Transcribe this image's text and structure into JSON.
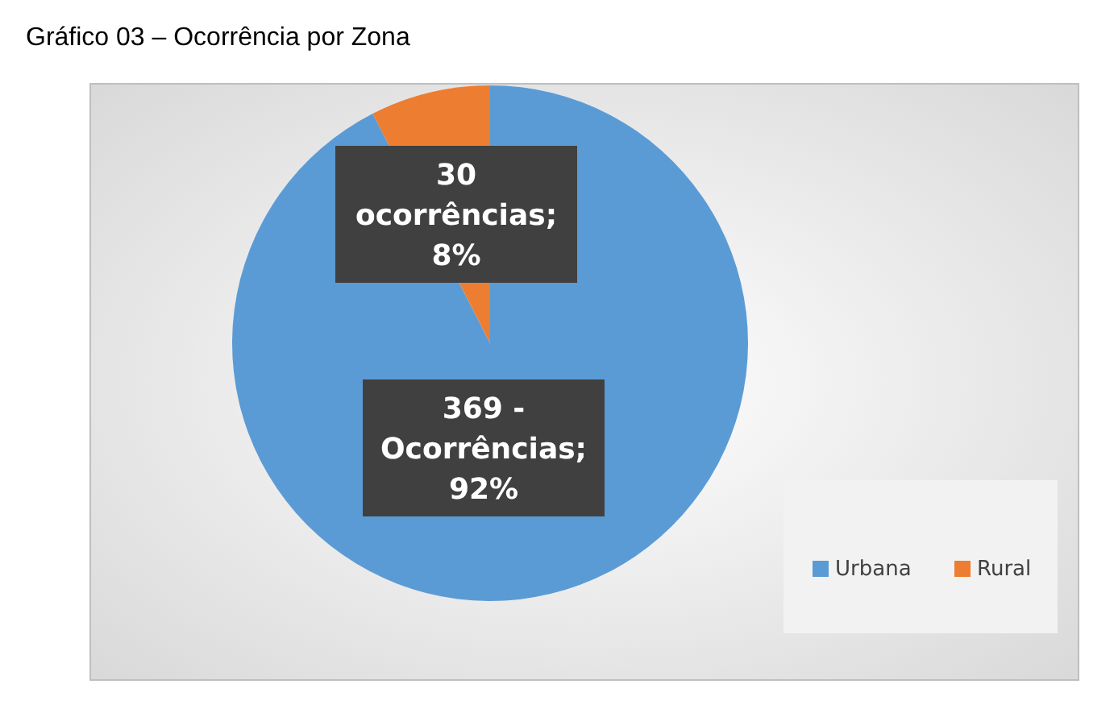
{
  "chart_data": {
    "type": "pie",
    "title": "Gráfico 03 – Ocorrência por Zona",
    "categories": [
      "Urbana",
      "Rural"
    ],
    "values": [
      369,
      30
    ],
    "colors": [
      "#5b9bd5",
      "#ed7d31"
    ],
    "value_labels": [
      "369 - Ocorrências; 92%",
      "30 ocorrências; 8%"
    ],
    "legend": "bottom right"
  }
}
